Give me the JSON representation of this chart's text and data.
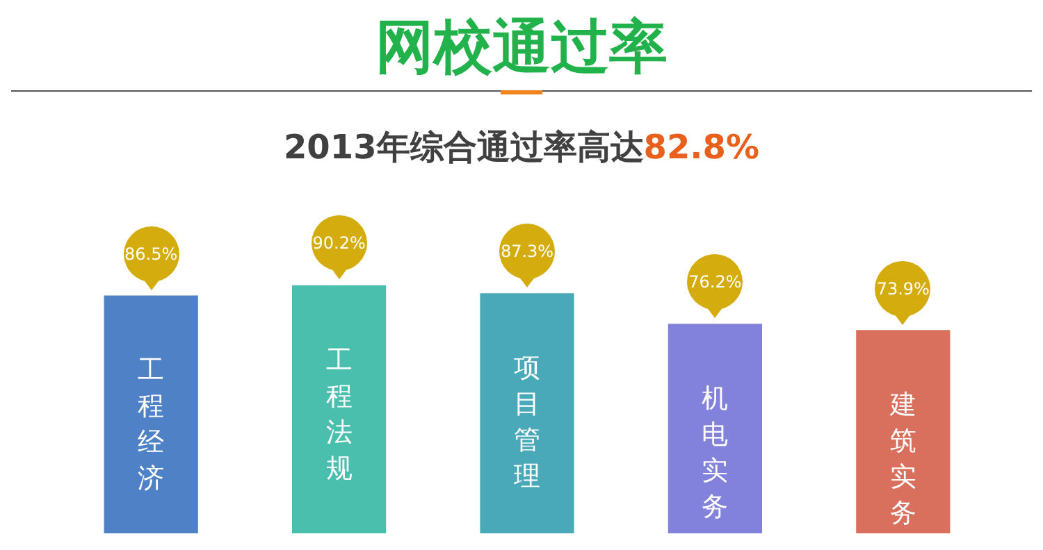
{
  "chart_data": {
    "type": "bar",
    "title": "网校通过率",
    "subtitle": "2013年综合通过率高达82.8%",
    "categories": [
      "工程经济",
      "工程法规",
      "项目管理",
      "机电实务",
      "建筑实务"
    ],
    "values": [
      86.5,
      90.2,
      87.3,
      76.2,
      73.9
    ],
    "value_labels": [
      "86.5%",
      "90.2%",
      "87.3%",
      "76.2%",
      "73.9%"
    ],
    "colors": [
      "#4f81c7",
      "#4bbfad",
      "#4aa9b8",
      "#8282dc",
      "#d9705e"
    ]
  }
}
